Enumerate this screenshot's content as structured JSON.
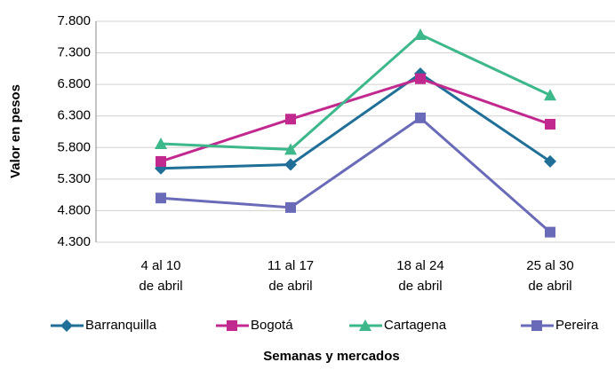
{
  "chart_data": {
    "type": "line",
    "categories": [
      "4 al 10\nde abril",
      "11 al 17\nde abril",
      "18 al 24\nde abril",
      "25 al 30\nde abril"
    ],
    "series": [
      {
        "name": "Barranquilla",
        "color": "#1f6f98",
        "marker": "diamond",
        "values": [
          5470,
          5530,
          6970,
          5580
        ]
      },
      {
        "name": "Bogotá",
        "color": "#c2298f",
        "marker": "square",
        "values": [
          5580,
          6250,
          6890,
          6170
        ]
      },
      {
        "name": "Cartagena",
        "color": "#3db88a",
        "marker": "triangle",
        "values": [
          5860,
          5770,
          7590,
          6630
        ]
      },
      {
        "name": "Pereira",
        "color": "#6a6bb8",
        "marker": "square",
        "values": [
          5000,
          4850,
          6270,
          4460
        ]
      }
    ],
    "ylabel": "Valor en pesos",
    "xlabel": "Semanas y mercados",
    "ylim": [
      4300,
      7800
    ],
    "yticks": [
      {
        "value": 4300,
        "label": "4.300"
      },
      {
        "value": 4800,
        "label": "4.800"
      },
      {
        "value": 5300,
        "label": "5.300"
      },
      {
        "value": 5800,
        "label": "5.800"
      },
      {
        "value": 6300,
        "label": "6.300"
      },
      {
        "value": 6800,
        "label": "6.800"
      },
      {
        "value": 7300,
        "label": "7.300"
      },
      {
        "value": 7800,
        "label": "7.800"
      }
    ],
    "grid": true,
    "legend": "bottom"
  }
}
